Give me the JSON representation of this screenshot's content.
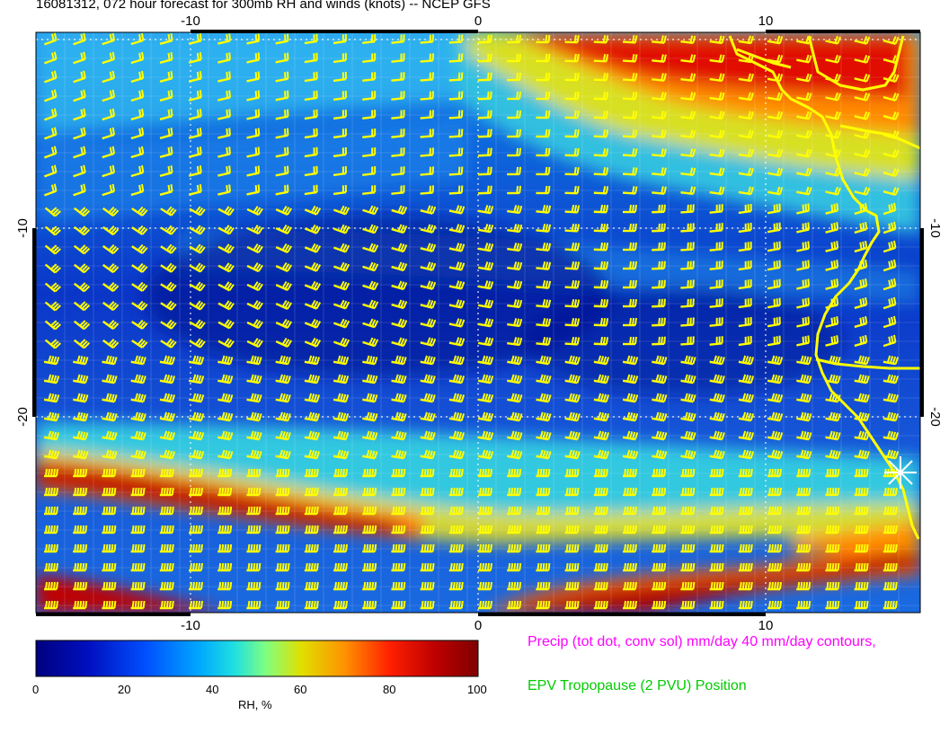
{
  "title": "16081312, 072 hour forecast for 300mb RH and winds (knots) -- NCEP GFS",
  "map": {
    "x_ticks": [
      "-10",
      "0",
      "10"
    ],
    "y_ticks": [
      "-10",
      "-20"
    ],
    "grid": true,
    "marker_icon": "asterisk-marker-icon"
  },
  "colorbar": {
    "label": "RH, %",
    "ticks": [
      "0",
      "20",
      "40",
      "60",
      "80",
      "100"
    ],
    "colors": [
      "#00007f",
      "#0010c0",
      "#0050ff",
      "#00a8ff",
      "#20e0e0",
      "#80ff80",
      "#e0e000",
      "#ff9000",
      "#ff2000",
      "#c00000",
      "#7f0000"
    ]
  },
  "legend": {
    "precip": "Precip (tot dot, conv sol) mm/day 40 mm/day contours,",
    "precip_color": "#ff00ff",
    "tropopause": "EPV Tropopause (2 PVU) Position",
    "tropopause_color": "#00cc00"
  },
  "colors": {
    "coast": "#ffff00",
    "barbs": "#ffff00",
    "frame": "#000000"
  }
}
